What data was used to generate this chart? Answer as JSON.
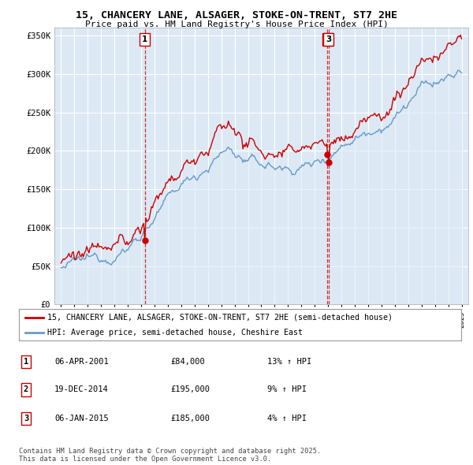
{
  "title": "15, CHANCERY LANE, ALSAGER, STOKE-ON-TRENT, ST7 2HE",
  "subtitle": "Price paid vs. HM Land Registry's House Price Index (HPI)",
  "ylim": [
    0,
    360000
  ],
  "yticks": [
    0,
    50000,
    100000,
    150000,
    200000,
    250000,
    300000,
    350000
  ],
  "ytick_labels": [
    "£0",
    "£50K",
    "£100K",
    "£150K",
    "£200K",
    "£250K",
    "£300K",
    "£350K"
  ],
  "sale_dates": [
    2001.27,
    2014.96,
    2015.02
  ],
  "sale_prices": [
    84000,
    195000,
    185000
  ],
  "sale_labels": [
    "1",
    "2",
    "3"
  ],
  "line_color_red": "#cc0000",
  "line_color_blue": "#6699cc",
  "fill_color_blue": "#dce9f5",
  "marker_vline_color": "#cc0000",
  "bg_color": "#ffffff",
  "chart_bg": "#dce9f5",
  "grid_color": "#ffffff",
  "legend_entries": [
    "15, CHANCERY LANE, ALSAGER, STOKE-ON-TRENT, ST7 2HE (semi-detached house)",
    "HPI: Average price, semi-detached house, Cheshire East"
  ],
  "table_data": [
    [
      "1",
      "06-APR-2001",
      "£84,000",
      "13% ↑ HPI"
    ],
    [
      "2",
      "19-DEC-2014",
      "£195,000",
      "9% ↑ HPI"
    ],
    [
      "3",
      "06-JAN-2015",
      "£185,000",
      "4% ↑ HPI"
    ]
  ],
  "footer_text": "Contains HM Land Registry data © Crown copyright and database right 2025.\nThis data is licensed under the Open Government Licence v3.0.",
  "xmin": 1994.5,
  "xmax": 2025.5
}
